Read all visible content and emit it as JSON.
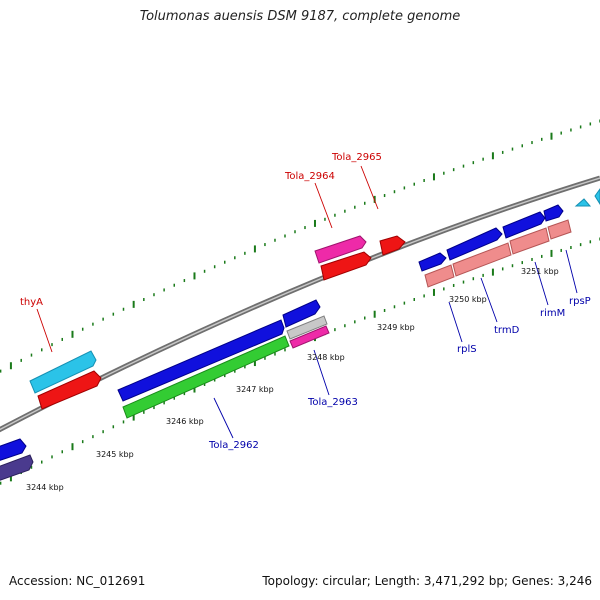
{
  "title": "Tolumonas auensis DSM 9187, complete genome",
  "footer": {
    "accession": "Accession: NC_012691",
    "summary": "Topology: circular; Length: 3,471,292 bp; Genes: 3,246"
  },
  "colors": {
    "backbone": "#8a8a8a",
    "tick": "#1a7a1a",
    "top_label": "#cc0000",
    "bottom_label": "#0000aa"
  },
  "scale_labels": [
    "3244 kbp",
    "3245 kbp",
    "3246 kbp",
    "3247 kbp",
    "3248 kbp",
    "3249 kbp",
    "3250 kbp",
    "3251 kbp"
  ],
  "genes_top_labels": [
    "thyA",
    "Tola_2964",
    "Tola_2965"
  ],
  "genes_bottom_labels": [
    "Tola_2962",
    "Tola_2963",
    "rplS",
    "trmD",
    "rimM",
    "rpsP"
  ]
}
